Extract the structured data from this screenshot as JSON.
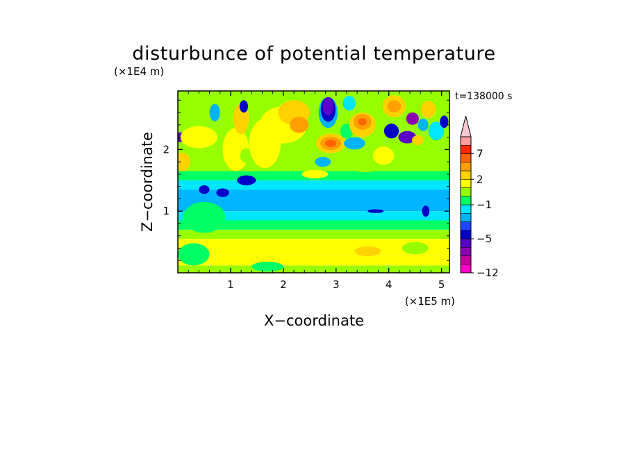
{
  "chart_data": {
    "type": "heatmap",
    "title": "disturbunce of potential temperature",
    "time_label": "t=138000 s",
    "xlabel": "X−coordinate",
    "ylabel": "Z−coordinate",
    "x_unit": "(×1E5 m)",
    "y_unit": "(×1E4 m)",
    "xlim": [
      0,
      5.15
    ],
    "ylim": [
      0,
      2.95
    ],
    "x_ticks": [
      {
        "value": 1,
        "label": "1"
      },
      {
        "value": 2,
        "label": "2"
      },
      {
        "value": 3,
        "label": "3"
      },
      {
        "value": 4,
        "label": "4"
      },
      {
        "value": 5,
        "label": "5"
      }
    ],
    "y_ticks": [
      {
        "value": 1,
        "label": "1"
      },
      {
        "value": 2,
        "label": "2"
      }
    ],
    "colorbar": {
      "levels": [
        -12,
        -10,
        -8,
        -6,
        -5,
        -4,
        -3,
        -2,
        -1,
        0,
        1,
        2,
        3,
        5,
        7,
        9,
        11
      ],
      "colors": [
        "#ff00c8",
        "#c8009b",
        "#8c00b4",
        "#5a00c8",
        "#0000c8",
        "#1e46ff",
        "#00b4ff",
        "#00e6ff",
        "#00ff64",
        "#96ff00",
        "#ffff00",
        "#ffd200",
        "#ffa000",
        "#ff6400",
        "#ff2800",
        "#ff9ba0",
        "#ffc8d2"
      ],
      "tick_labels": [
        {
          "value": -12,
          "label": "−12"
        },
        {
          "value": -5,
          "label": "−5"
        },
        {
          "value": -1,
          "label": "−1"
        },
        {
          "value": 2,
          "label": "2"
        },
        {
          "value": 7,
          "label": "7"
        }
      ],
      "extend": "max",
      "placement": "right"
    },
    "bands": [
      {
        "z": [
          0.0,
          0.12
        ],
        "value": 0.5
      },
      {
        "z": [
          0.12,
          0.28
        ],
        "value": 1.5
      },
      {
        "z": [
          0.28,
          0.55
        ],
        "value": 1.5
      },
      {
        "z": [
          0.55,
          0.7
        ],
        "value": 0.5
      },
      {
        "z": [
          0.7,
          0.85
        ],
        "value": -0.5
      },
      {
        "z": [
          0.85,
          1.0
        ],
        "value": -1.5
      },
      {
        "z": [
          1.0,
          1.35
        ],
        "value": -2.5
      },
      {
        "z": [
          1.35,
          1.5
        ],
        "value": -1.5
      },
      {
        "z": [
          1.5,
          1.65
        ],
        "value": -0.5
      },
      {
        "z": [
          1.65,
          2.95
        ],
        "value": 0.5
      }
    ],
    "features": [
      {
        "x": 0.08,
        "z": 2.5,
        "rx": 0.12,
        "rz": 0.12,
        "value": 0.5
      },
      {
        "x": 0.05,
        "z": 2.2,
        "rx": 0.08,
        "rz": 0.08,
        "value": -5.5
      },
      {
        "x": 0.08,
        "z": 1.8,
        "rx": 0.15,
        "rz": 0.15,
        "value": 2.5
      },
      {
        "x": 0.4,
        "z": 2.2,
        "rx": 0.35,
        "rz": 0.18,
        "value": 1.5
      },
      {
        "x": 0.7,
        "z": 2.6,
        "rx": 0.1,
        "rz": 0.14,
        "value": -2.5
      },
      {
        "x": 0.5,
        "z": 1.35,
        "rx": 0.1,
        "rz": 0.07,
        "value": -4.5
      },
      {
        "x": 0.85,
        "z": 1.3,
        "rx": 0.12,
        "rz": 0.07,
        "value": -4.5
      },
      {
        "x": 1.1,
        "z": 2.0,
        "rx": 0.25,
        "rz": 0.35,
        "value": 1.5
      },
      {
        "x": 1.2,
        "z": 2.5,
        "rx": 0.15,
        "rz": 0.25,
        "value": 2.5
      },
      {
        "x": 1.25,
        "z": 2.7,
        "rx": 0.08,
        "rz": 0.1,
        "value": -4.5
      },
      {
        "x": 1.3,
        "z": 1.5,
        "rx": 0.18,
        "rz": 0.08,
        "value": -4.5
      },
      {
        "x": 1.3,
        "z": 1.9,
        "rx": 0.12,
        "rz": 0.12,
        "value": 0.5
      },
      {
        "x": 1.65,
        "z": 2.1,
        "rx": 0.3,
        "rz": 0.4,
        "value": 1.5
      },
      {
        "x": 2.0,
        "z": 2.4,
        "rx": 0.45,
        "rz": 0.3,
        "value": 1.5
      },
      {
        "x": 2.2,
        "z": 2.6,
        "rx": 0.3,
        "rz": 0.2,
        "value": 2.5
      },
      {
        "x": 2.3,
        "z": 2.4,
        "rx": 0.18,
        "rz": 0.13,
        "value": 4.0
      },
      {
        "x": 2.4,
        "z": 1.9,
        "rx": 0.3,
        "rz": 0.12,
        "value": 0.5
      },
      {
        "x": 2.6,
        "z": 1.6,
        "rx": 0.25,
        "rz": 0.07,
        "value": 1.5
      },
      {
        "x": 2.8,
        "z": 2.55,
        "rx": 0.25,
        "rz": 0.3,
        "value": 0.5
      },
      {
        "x": 2.85,
        "z": 2.6,
        "rx": 0.18,
        "rz": 0.25,
        "value": -2.5
      },
      {
        "x": 2.85,
        "z": 2.65,
        "rx": 0.14,
        "rz": 0.2,
        "value": -4.5
      },
      {
        "x": 2.85,
        "z": 2.7,
        "rx": 0.1,
        "rz": 0.15,
        "value": -5.5
      },
      {
        "x": 2.9,
        "z": 2.1,
        "rx": 0.28,
        "rz": 0.16,
        "value": 2.5
      },
      {
        "x": 2.9,
        "z": 2.1,
        "rx": 0.2,
        "rz": 0.11,
        "value": 4.0
      },
      {
        "x": 2.9,
        "z": 2.1,
        "rx": 0.11,
        "rz": 0.06,
        "value": 6.0
      },
      {
        "x": 2.75,
        "z": 1.8,
        "rx": 0.15,
        "rz": 0.08,
        "value": -2.5
      },
      {
        "x": 3.2,
        "z": 2.3,
        "rx": 0.12,
        "rz": 0.12,
        "value": -0.5
      },
      {
        "x": 3.5,
        "z": 2.4,
        "rx": 0.25,
        "rz": 0.2,
        "value": 2.5
      },
      {
        "x": 3.5,
        "z": 2.45,
        "rx": 0.17,
        "rz": 0.13,
        "value": 4.0
      },
      {
        "x": 3.5,
        "z": 2.45,
        "rx": 0.08,
        "rz": 0.06,
        "value": 6.0
      },
      {
        "x": 3.35,
        "z": 2.1,
        "rx": 0.2,
        "rz": 0.1,
        "value": -2.5
      },
      {
        "x": 3.25,
        "z": 2.75,
        "rx": 0.12,
        "rz": 0.12,
        "value": -1.5
      },
      {
        "x": 3.55,
        "z": 1.75,
        "rx": 0.3,
        "rz": 0.12,
        "value": 0.5
      },
      {
        "x": 3.9,
        "z": 1.9,
        "rx": 0.2,
        "rz": 0.15,
        "value": 1.5
      },
      {
        "x": 4.05,
        "z": 2.3,
        "rx": 0.14,
        "rz": 0.12,
        "value": -4.5
      },
      {
        "x": 4.1,
        "z": 2.7,
        "rx": 0.22,
        "rz": 0.18,
        "value": 2.5
      },
      {
        "x": 4.1,
        "z": 2.7,
        "rx": 0.13,
        "rz": 0.1,
        "value": 4.0
      },
      {
        "x": 4.35,
        "z": 2.2,
        "rx": 0.17,
        "rz": 0.1,
        "value": -5.5
      },
      {
        "x": 4.45,
        "z": 2.5,
        "rx": 0.12,
        "rz": 0.1,
        "value": -7.0
      },
      {
        "x": 4.55,
        "z": 2.15,
        "rx": 0.11,
        "rz": 0.08,
        "value": 2.5
      },
      {
        "x": 4.65,
        "z": 2.4,
        "rx": 0.1,
        "rz": 0.1,
        "value": -2.5
      },
      {
        "x": 4.75,
        "z": 2.65,
        "rx": 0.14,
        "rz": 0.14,
        "value": 2.5
      },
      {
        "x": 4.9,
        "z": 2.3,
        "rx": 0.15,
        "rz": 0.15,
        "value": -1.5
      },
      {
        "x": 4.9,
        "z": 2.0,
        "rx": 0.15,
        "rz": 0.08,
        "value": 0.5
      },
      {
        "x": 5.05,
        "z": 2.45,
        "rx": 0.08,
        "rz": 0.1,
        "value": -4.5
      },
      {
        "x": 3.75,
        "z": 1.0,
        "rx": 0.15,
        "rz": 0.03,
        "value": -4.5
      },
      {
        "x": 4.7,
        "z": 1.0,
        "rx": 0.07,
        "rz": 0.09,
        "value": -4.5
      },
      {
        "x": 4.5,
        "z": 0.4,
        "rx": 0.25,
        "rz": 0.1,
        "value": 0.5
      },
      {
        "x": 0.5,
        "z": 0.9,
        "rx": 0.4,
        "rz": 0.25,
        "value": -0.5
      },
      {
        "x": 0.3,
        "z": 0.3,
        "rx": 0.3,
        "rz": 0.18,
        "value": -0.5
      },
      {
        "x": 1.7,
        "z": 0.1,
        "rx": 0.3,
        "rz": 0.08,
        "value": -0.5
      },
      {
        "x": 3.6,
        "z": 0.35,
        "rx": 0.25,
        "rz": 0.08,
        "value": 2.5
      }
    ]
  }
}
